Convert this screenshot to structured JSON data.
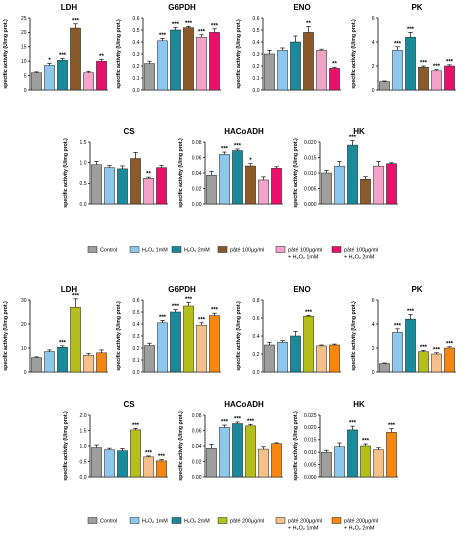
{
  "colors": {
    "control": "#9e9e9e",
    "h2o2_1mM": "#8ec7ee",
    "h2o2_2mM": "#1a8a9a",
    "pate100": "#8a5a2b",
    "pate100_h2o2_1mM": "#f2a3c8",
    "pate100_h2o2_2mM": "#e8106a",
    "pate200": "#b5bf1c",
    "pate200_h2o2_1mM": "#f7c08a",
    "pate200_h2o2_2mM": "#f7860f"
  },
  "legends": [
    {
      "items": [
        {
          "label": "Control",
          "color_key": "control"
        },
        {
          "label": "H₂O₂ 1mM",
          "color_key": "h2o2_1mM"
        },
        {
          "label": "H₂O₂ 2mM",
          "color_key": "h2o2_2mM"
        },
        {
          "label": "pâté 100µg/ml",
          "color_key": "pate100"
        },
        {
          "label": "pâté 100µg/ml",
          "label2": "+ H₂O₂ 1mM",
          "color_key": "pate100_h2o2_1mM"
        },
        {
          "label": "pâté 100µg/ml",
          "label2": "+ H₂O₂ 2mM",
          "color_key": "pate100_h2o2_2mM"
        }
      ]
    },
    {
      "items": [
        {
          "label": "Control",
          "color_key": "control"
        },
        {
          "label": "H₂O₂ 1mM",
          "color_key": "h2o2_1mM"
        },
        {
          "label": "H₂O₂ 2mM",
          "color_key": "h2o2_2mM"
        },
        {
          "label": "pâté 200µg/ml",
          "color_key": "pate200"
        },
        {
          "label": "pâté 200µg/ml",
          "label2": "+ H₂O₂ 1mM",
          "color_key": "pate200_h2o2_1mM"
        },
        {
          "label": "pâté 200µg/ml",
          "label2": "+ H₂O₂ 2mM",
          "color_key": "pate200_h2o2_2mM"
        }
      ]
    }
  ],
  "chart_data": [
    {
      "type": "bar",
      "title": "LDH",
      "ylabel": "specific activity (U/mg prot.)",
      "ylim": [
        0,
        25
      ],
      "yticks": [
        "0",
        "5",
        "10",
        "15",
        "20",
        "25"
      ],
      "colors": [
        "control",
        "h2o2_1mM",
        "h2o2_2mM",
        "pate100",
        "pate100_h2o2_1mM",
        "pate100_h2o2_2mM"
      ],
      "values": [
        6,
        8.5,
        10.3,
        21.5,
        6,
        10
      ],
      "errors": [
        0.3,
        0.7,
        0.6,
        1.5,
        0.5,
        0.6
      ],
      "annotations": [
        "",
        "*",
        "***",
        "***",
        "",
        "**"
      ]
    },
    {
      "type": "bar",
      "title": "G6PDH",
      "ylabel": "specific activity (U/mg prot.)",
      "ylim": [
        0,
        0.6
      ],
      "yticks": [
        "0.0",
        "0.1",
        "0.2",
        "0.3",
        "0.4",
        "0.5",
        "0.6"
      ],
      "colors": [
        "control",
        "h2o2_1mM",
        "h2o2_2mM",
        "pate100",
        "pate100_h2o2_1mM",
        "pate100_h2o2_2mM"
      ],
      "values": [
        0.22,
        0.41,
        0.5,
        0.52,
        0.44,
        0.48
      ],
      "errors": [
        0.02,
        0.02,
        0.02,
        0.01,
        0.02,
        0.03
      ],
      "annotations": [
        "",
        "***",
        "***",
        "***",
        "***",
        "***"
      ]
    },
    {
      "type": "bar",
      "title": "ENO",
      "ylabel": "specific activity (U/mg prot.)",
      "ylim": [
        0,
        0.6
      ],
      "yticks": [
        "0.0",
        "0.1",
        "0.2",
        "0.3",
        "0.4",
        "0.5",
        "0.6"
      ],
      "colors": [
        "control",
        "h2o2_1mM",
        "h2o2_2mM",
        "pate100",
        "pate100_h2o2_1mM",
        "pate100_h2o2_2mM"
      ],
      "values": [
        0.3,
        0.33,
        0.4,
        0.48,
        0.33,
        0.18
      ],
      "errors": [
        0.03,
        0.02,
        0.05,
        0.05,
        0.01,
        0.01
      ],
      "annotations": [
        "",
        "",
        "",
        "**",
        "",
        "**"
      ]
    },
    {
      "type": "bar",
      "title": "PK",
      "ylabel": "specific activity (U/mg prot.)",
      "ylim": [
        0,
        6
      ],
      "yticks": [
        "0",
        "2",
        "4",
        "6"
      ],
      "colors": [
        "control",
        "h2o2_1mM",
        "h2o2_2mM",
        "pate100",
        "pate100_h2o2_1mM",
        "pate100_h2o2_2mM"
      ],
      "values": [
        0.7,
        3.3,
        4.4,
        1.9,
        1.6,
        2.0
      ],
      "errors": [
        0.05,
        0.3,
        0.4,
        0.1,
        0.1,
        0.1
      ],
      "annotations": [
        "",
        "***",
        "***",
        "***",
        "***",
        "***"
      ]
    },
    {
      "type": "bar",
      "title": "CS",
      "ylabel": "specific activity (U/mg prot.)",
      "ylim": [
        0,
        1.5
      ],
      "yticks": [
        "0.0",
        "0.5",
        "1.0",
        "1.5"
      ],
      "colors": [
        "control",
        "h2o2_1mM",
        "h2o2_2mM",
        "pate100",
        "pate100_h2o2_1mM",
        "pate100_h2o2_2mM"
      ],
      "values": [
        0.95,
        0.88,
        0.85,
        1.1,
        0.62,
        0.88
      ],
      "errors": [
        0.08,
        0.05,
        0.07,
        0.15,
        0.03,
        0.05
      ],
      "annotations": [
        "",
        "",
        "",
        "",
        "**",
        ""
      ]
    },
    {
      "type": "bar",
      "title": "HACoADH",
      "ylabel": "specific activity (U/mg prot.)",
      "ylim": [
        0,
        0.08
      ],
      "yticks": [
        "0.00",
        "0.02",
        "0.04",
        "0.06",
        "0.08"
      ],
      "colors": [
        "control",
        "h2o2_1mM",
        "h2o2_2mM",
        "pate100",
        "pate100_h2o2_1mM",
        "pate100_h2o2_2mM"
      ],
      "values": [
        0.037,
        0.064,
        0.069,
        0.049,
        0.031,
        0.046
      ],
      "errors": [
        0.005,
        0.003,
        0.002,
        0.003,
        0.004,
        0.002
      ],
      "annotations": [
        "",
        "***",
        "***",
        "*",
        "",
        ""
      ]
    },
    {
      "type": "bar",
      "title": "HK",
      "ylabel": "specific activity (U/mg prot.)",
      "ylim": [
        0,
        0.02
      ],
      "yticks": [
        "0.000",
        "0.005",
        "0.010",
        "0.015",
        "0.020"
      ],
      "colors": [
        "control",
        "h2o2_1mM",
        "h2o2_2mM",
        "pate100",
        "pate100_h2o2_1mM",
        "pate100_h2o2_2mM"
      ],
      "values": [
        0.01,
        0.0122,
        0.019,
        0.008,
        0.0122,
        0.013
      ],
      "errors": [
        0.0008,
        0.0015,
        0.0015,
        0.0008,
        0.0015,
        0.0003
      ],
      "annotations": [
        "",
        "",
        "***",
        "",
        "",
        ""
      ]
    },
    {
      "type": "bar",
      "title": "LDH",
      "ylabel": "specific activity (U/mg prot.)",
      "ylim": [
        0,
        30
      ],
      "yticks": [
        "0",
        "10",
        "20",
        "30"
      ],
      "colors": [
        "control",
        "h2o2_1mM",
        "h2o2_2mM",
        "pate200",
        "pate200_h2o2_1mM",
        "pate200_h2o2_2mM"
      ],
      "values": [
        6,
        8.5,
        10.3,
        27,
        7,
        8
      ],
      "errors": [
        0.3,
        0.7,
        0.6,
        3.5,
        0.8,
        1.2
      ],
      "annotations": [
        "",
        "",
        "***",
        "***",
        "",
        ""
      ]
    },
    {
      "type": "bar",
      "title": "G6PDH",
      "ylabel": "specific activity (U/mg prot.)",
      "ylim": [
        0,
        0.6
      ],
      "yticks": [
        "0.0",
        "0.1",
        "0.2",
        "0.3",
        "0.4",
        "0.5",
        "0.6"
      ],
      "colors": [
        "control",
        "h2o2_1mM",
        "h2o2_2mM",
        "pate200",
        "pate200_h2o2_1mM",
        "pate200_h2o2_2mM"
      ],
      "values": [
        0.22,
        0.41,
        0.5,
        0.55,
        0.39,
        0.47
      ],
      "errors": [
        0.02,
        0.02,
        0.02,
        0.03,
        0.02,
        0.02
      ],
      "annotations": [
        "",
        "***",
        "***",
        "***",
        "***",
        "***"
      ]
    },
    {
      "type": "bar",
      "title": "ENO",
      "ylabel": "specific activity (U/mg prot.)",
      "ylim": [
        0,
        0.8
      ],
      "yticks": [
        "0.0",
        "0.2",
        "0.4",
        "0.6",
        "0.8"
      ],
      "colors": [
        "control",
        "h2o2_1mM",
        "h2o2_2mM",
        "pate200",
        "pate200_h2o2_1mM",
        "pate200_h2o2_2mM"
      ],
      "values": [
        0.3,
        0.33,
        0.4,
        0.62,
        0.29,
        0.3
      ],
      "errors": [
        0.03,
        0.02,
        0.05,
        0.01,
        0.01,
        0.01
      ],
      "annotations": [
        "",
        "",
        "",
        "***",
        "",
        ""
      ]
    },
    {
      "type": "bar",
      "title": "PK",
      "ylabel": "specific activity (U/mg prot.)",
      "ylim": [
        0,
        6
      ],
      "yticks": [
        "0",
        "2",
        "4",
        "6"
      ],
      "colors": [
        "control",
        "h2o2_1mM",
        "h2o2_2mM",
        "pate200",
        "pate200_h2o2_1mM",
        "pate200_h2o2_2mM"
      ],
      "values": [
        0.7,
        3.3,
        4.4,
        1.7,
        1.5,
        2.0
      ],
      "errors": [
        0.05,
        0.3,
        0.4,
        0.1,
        0.1,
        0.1
      ],
      "annotations": [
        "",
        "***",
        "***",
        "***",
        "***",
        "***"
      ]
    },
    {
      "type": "bar",
      "title": "CS",
      "ylabel": "specific activity (U/mg prot.)",
      "ylim": [
        0,
        2.0
      ],
      "yticks": [
        "0.0",
        "0.5",
        "1.0",
        "1.5",
        "2.0"
      ],
      "colors": [
        "control",
        "h2o2_1mM",
        "h2o2_2mM",
        "pate200",
        "pate200_h2o2_1mM",
        "pate200_h2o2_2mM"
      ],
      "values": [
        0.95,
        0.88,
        0.85,
        1.52,
        0.65,
        0.52
      ],
      "errors": [
        0.08,
        0.05,
        0.07,
        0.05,
        0.03,
        0.04
      ],
      "annotations": [
        "",
        "",
        "",
        "***",
        "***",
        "***"
      ]
    },
    {
      "type": "bar",
      "title": "HACoADH",
      "ylabel": "specific activity (U/mg prot.)",
      "ylim": [
        0,
        0.08
      ],
      "yticks": [
        "0.00",
        "0.02",
        "0.04",
        "0.06",
        "0.08"
      ],
      "colors": [
        "control",
        "h2o2_1mM",
        "h2o2_2mM",
        "pate200",
        "pate200_h2o2_1mM",
        "pate200_h2o2_2mM"
      ],
      "values": [
        0.037,
        0.064,
        0.069,
        0.066,
        0.036,
        0.043
      ],
      "errors": [
        0.005,
        0.003,
        0.002,
        0.002,
        0.003,
        0.001
      ],
      "annotations": [
        "",
        "***",
        "***",
        "***",
        "",
        ""
      ]
    },
    {
      "type": "bar",
      "title": "HK",
      "ylabel": "specific activity (U/mg prot.)",
      "ylim": [
        0,
        0.025
      ],
      "yticks": [
        "0.000",
        "0.005",
        "0.010",
        "0.015",
        "0.020",
        "0.025"
      ],
      "colors": [
        "control",
        "h2o2_1mM",
        "h2o2_2mM",
        "pate200",
        "pate200_h2o2_1mM",
        "pate200_h2o2_2mM"
      ],
      "values": [
        0.01,
        0.0122,
        0.019,
        0.0125,
        0.011,
        0.018
      ],
      "errors": [
        0.0008,
        0.0015,
        0.0015,
        0.0008,
        0.0008,
        0.0015
      ],
      "annotations": [
        "",
        "",
        "***",
        "***",
        "",
        "***"
      ]
    }
  ]
}
